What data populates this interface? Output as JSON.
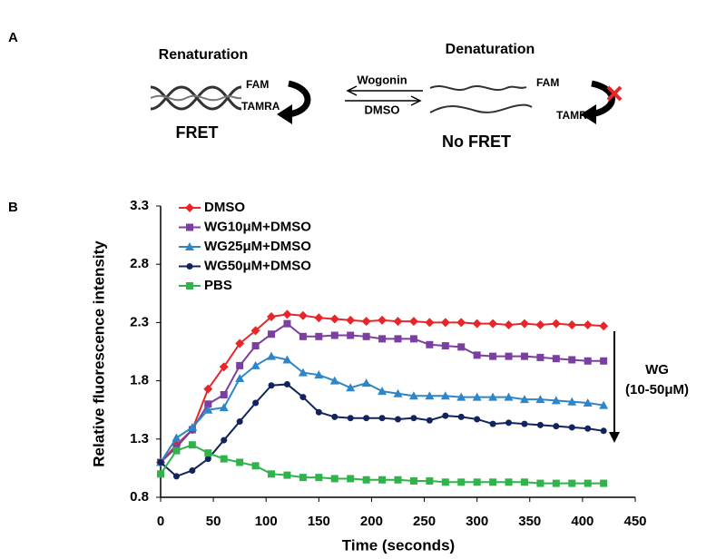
{
  "panel_labels": [
    "A",
    "B"
  ],
  "scheme": {
    "left_title": "Renaturation",
    "left_fam": "FAM",
    "left_tamra": "TAMRA",
    "left_state": "FRET",
    "arrow_top": "Wogonin",
    "arrow_bottom": "DMSO",
    "right_title": "Denaturation",
    "right_fam": "FAM",
    "right_tamra": "TAMRA",
    "right_state": "No FRET"
  },
  "chart_data": {
    "type": "line",
    "x_label": "Time (seconds)",
    "y_label": "Relative fluorescence intensity",
    "x": [
      0,
      15,
      30,
      45,
      60,
      75,
      90,
      105,
      120,
      135,
      150,
      165,
      180,
      195,
      210,
      225,
      240,
      255,
      270,
      285,
      300,
      315,
      330,
      345,
      360,
      375,
      390,
      405,
      420
    ],
    "series": [
      {
        "name": "DMSO",
        "color": "#e8262a",
        "marker": "diamond",
        "values": [
          1.1,
          1.25,
          1.38,
          1.73,
          1.92,
          2.12,
          2.23,
          2.35,
          2.37,
          2.36,
          2.34,
          2.33,
          2.32,
          2.31,
          2.32,
          2.31,
          2.31,
          2.3,
          2.3,
          2.3,
          2.29,
          2.29,
          2.28,
          2.29,
          2.28,
          2.29,
          2.28,
          2.28,
          2.27
        ]
      },
      {
        "name": "WG10μM+DMSO",
        "color": "#7a3fa0",
        "marker": "square",
        "values": [
          1.1,
          1.23,
          1.38,
          1.6,
          1.68,
          1.93,
          2.1,
          2.2,
          2.29,
          2.18,
          2.18,
          2.19,
          2.19,
          2.18,
          2.16,
          2.16,
          2.16,
          2.11,
          2.1,
          2.09,
          2.02,
          2.01,
          2.01,
          2.01,
          2.0,
          1.99,
          1.98,
          1.97,
          1.97
        ]
      },
      {
        "name": "WG25μM+DMSO",
        "color": "#2e86c8",
        "marker": "triangle",
        "values": [
          1.1,
          1.31,
          1.4,
          1.55,
          1.57,
          1.82,
          1.93,
          2.01,
          1.98,
          1.87,
          1.85,
          1.8,
          1.74,
          1.78,
          1.71,
          1.69,
          1.67,
          1.67,
          1.67,
          1.66,
          1.66,
          1.66,
          1.66,
          1.64,
          1.64,
          1.63,
          1.62,
          1.61,
          1.59
        ]
      },
      {
        "name": "WG50μM+DMSO",
        "color": "#13235e",
        "marker": "circle",
        "values": [
          1.1,
          0.98,
          1.03,
          1.13,
          1.29,
          1.45,
          1.61,
          1.76,
          1.77,
          1.66,
          1.53,
          1.49,
          1.48,
          1.48,
          1.48,
          1.47,
          1.48,
          1.46,
          1.5,
          1.49,
          1.47,
          1.43,
          1.44,
          1.43,
          1.42,
          1.41,
          1.4,
          1.39,
          1.37
        ]
      },
      {
        "name": "PBS",
        "color": "#2fb34a",
        "marker": "square",
        "values": [
          1.0,
          1.2,
          1.25,
          1.18,
          1.13,
          1.1,
          1.07,
          1.0,
          0.99,
          0.97,
          0.97,
          0.96,
          0.96,
          0.95,
          0.95,
          0.95,
          0.94,
          0.94,
          0.93,
          0.93,
          0.93,
          0.93,
          0.93,
          0.93,
          0.92,
          0.92,
          0.92,
          0.92,
          0.92
        ]
      }
    ],
    "xlim": [
      0,
      450
    ],
    "xticks": [
      0,
      50,
      100,
      150,
      200,
      250,
      300,
      350,
      400,
      450
    ],
    "ylim": [
      0.8,
      3.3
    ],
    "yticks": [
      0.8,
      1.3,
      1.8,
      2.3,
      2.8,
      3.3
    ],
    "legend": "upper left",
    "annotation": [
      "WG",
      "(10-50μM)"
    ]
  }
}
